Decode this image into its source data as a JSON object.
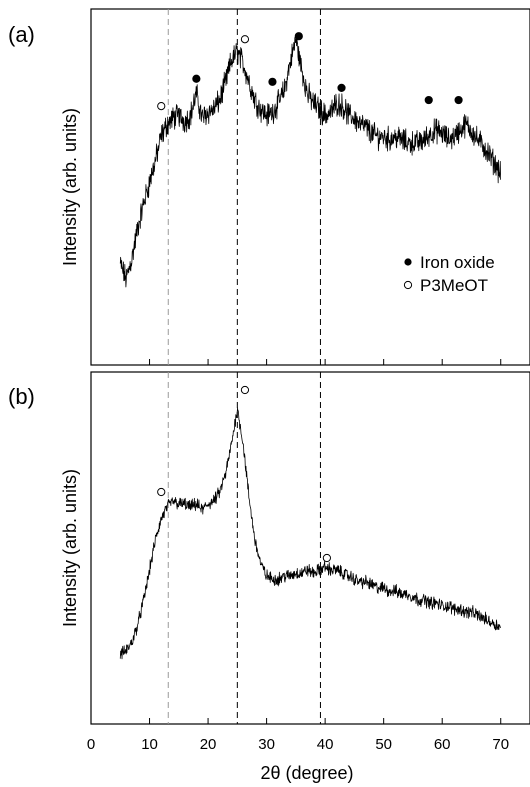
{
  "chart_data": {
    "type": "line",
    "xlabel": "2θ (degree)",
    "xlim": [
      0,
      75
    ],
    "x_ticks": [
      0,
      10,
      20,
      30,
      40,
      50,
      60,
      70
    ],
    "reference_lines_x": [
      13.2,
      25,
      39.2
    ],
    "legend": {
      "position": "right",
      "entries": [
        {
          "marker": "filled-circle",
          "label": "Iron oxide"
        },
        {
          "marker": "open-circle",
          "label": "P3MeOT"
        }
      ]
    },
    "panels": [
      {
        "label": "(a)",
        "ylabel": "Intensity (arb. units)",
        "ylim": [
          0,
          100
        ],
        "x": [
          5,
          6,
          7,
          8,
          9,
          10,
          11,
          12,
          13,
          14,
          15,
          16,
          17,
          18,
          19,
          20,
          21,
          22,
          23,
          24,
          25,
          26,
          27,
          28,
          29,
          30,
          31,
          32,
          33,
          34,
          35,
          36,
          37,
          38,
          39,
          40,
          41,
          42,
          43,
          44,
          45,
          46,
          47,
          48,
          49,
          50,
          51,
          52,
          53,
          54,
          55,
          56,
          57,
          58,
          59,
          60,
          61,
          62,
          63,
          64,
          65,
          66,
          67,
          68,
          69,
          70
        ],
        "y": [
          20,
          15,
          22,
          32,
          40,
          47,
          54,
          62,
          66,
          68,
          69,
          67,
          69,
          76,
          68,
          70,
          71,
          74,
          80,
          87,
          90,
          86,
          80,
          74,
          71,
          69,
          70,
          73,
          77,
          86,
          94,
          84,
          76,
          73,
          71,
          69,
          70,
          73,
          72,
          69,
          68,
          66,
          65,
          63,
          62,
          62,
          61,
          62,
          61,
          60,
          60,
          60,
          61,
          63,
          64,
          63,
          61,
          62,
          64,
          66,
          64,
          61,
          59,
          56,
          53,
          50
        ],
        "markers": [
          {
            "type": "P3MeOT",
            "x": 12,
            "y": 72
          },
          {
            "type": "Iron oxide",
            "x": 18,
            "y": 81
          },
          {
            "type": "P3MeOT",
            "x": 26.3,
            "y": 94
          },
          {
            "type": "Iron oxide",
            "x": 31,
            "y": 80
          },
          {
            "type": "Iron oxide",
            "x": 35.5,
            "y": 95
          },
          {
            "type": "Iron oxide",
            "x": 42.8,
            "y": 78
          },
          {
            "type": "Iron oxide",
            "x": 57.7,
            "y": 74
          },
          {
            "type": "Iron oxide",
            "x": 62.8,
            "y": 74
          }
        ]
      },
      {
        "label": "(b)",
        "ylabel": "Intensity (arb. units)",
        "ylim": [
          0,
          100
        ],
        "x": [
          5,
          6,
          7,
          8,
          9,
          10,
          11,
          12,
          13,
          14,
          15,
          16,
          17,
          18,
          19,
          20,
          21,
          22,
          23,
          24,
          25,
          26,
          27,
          28,
          29,
          30,
          31,
          32,
          33,
          34,
          35,
          36,
          37,
          38,
          39,
          40,
          41,
          42,
          43,
          44,
          45,
          46,
          47,
          48,
          49,
          50,
          51,
          52,
          53,
          54,
          55,
          56,
          57,
          58,
          59,
          60,
          61,
          62,
          63,
          64,
          65,
          66,
          67,
          68,
          69,
          70
        ],
        "y": [
          10,
          11,
          14,
          20,
          28,
          38,
          48,
          55,
          59,
          61,
          60,
          60,
          59,
          60,
          58,
          60,
          61,
          64,
          70,
          80,
          92,
          80,
          62,
          48,
          40,
          36,
          35,
          35,
          36,
          36,
          37,
          37,
          38,
          37,
          38,
          39,
          38,
          38,
          37,
          36,
          35,
          34,
          34,
          33,
          32,
          32,
          31,
          31,
          30,
          30,
          29,
          28,
          28,
          27,
          27,
          26,
          26,
          25,
          25,
          24,
          24,
          23,
          22,
          21,
          20,
          19
        ],
        "markers": [
          {
            "type": "P3MeOT",
            "x": 12,
            "y": 64
          },
          {
            "type": "P3MeOT",
            "x": 26.3,
            "y": 98
          },
          {
            "type": "P3MeOT",
            "x": 40.3,
            "y": 42
          }
        ]
      }
    ]
  }
}
